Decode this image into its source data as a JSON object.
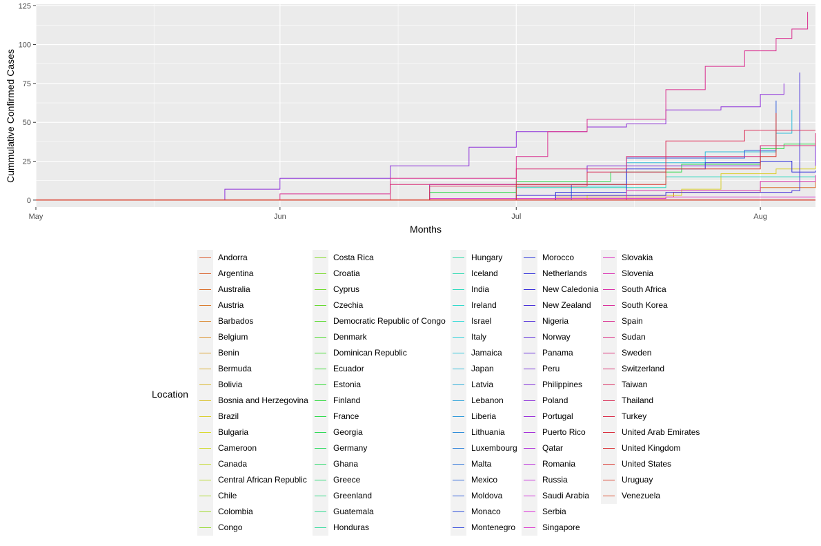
{
  "chart_data": {
    "type": "line",
    "xlabel": "Months",
    "ylabel": "Cummulative Confirmed Cases",
    "x_ticks": [
      "May",
      "Jun",
      "Jul",
      "Aug"
    ],
    "x_range": [
      "2020-05-01",
      "2020-08-08"
    ],
    "y_ticks": [
      "0",
      "25",
      "50",
      "75",
      "100",
      "125"
    ],
    "ylim": [
      -4.5,
      126
    ],
    "grid": true,
    "legend_title": "Location",
    "legend_position": "bottom",
    "series": [
      {
        "name": "Andorra",
        "points": []
      },
      {
        "name": "Argentina",
        "points": []
      },
      {
        "name": "Australia",
        "points": [
          [
            "2020-06-22",
            0
          ],
          [
            "2020-07-06",
            2
          ],
          [
            "2020-07-21",
            5
          ],
          [
            "2020-08-01",
            8
          ],
          [
            "2020-08-08",
            12
          ]
        ]
      },
      {
        "name": "Austria",
        "points": []
      },
      {
        "name": "Barbados",
        "points": []
      },
      {
        "name": "Belgium",
        "points": []
      },
      {
        "name": "Benin",
        "points": []
      },
      {
        "name": "Bermuda",
        "points": []
      },
      {
        "name": "Bolivia",
        "points": []
      },
      {
        "name": "Bosnia and Herzegovina",
        "points": []
      },
      {
        "name": "Brazil",
        "points": [
          [
            "2020-06-25",
            0
          ],
          [
            "2020-07-10",
            3
          ],
          [
            "2020-07-22",
            7
          ],
          [
            "2020-07-27",
            17
          ],
          [
            "2020-08-03",
            20
          ],
          [
            "2020-08-08",
            24
          ]
        ]
      },
      {
        "name": "Bulgaria",
        "points": []
      },
      {
        "name": "Cameroon",
        "points": []
      },
      {
        "name": "Canada",
        "points": []
      },
      {
        "name": "Central African Republic",
        "points": []
      },
      {
        "name": "Chile",
        "points": []
      },
      {
        "name": "Colombia",
        "points": []
      },
      {
        "name": "Congo",
        "points": []
      },
      {
        "name": "Costa Rica",
        "points": []
      },
      {
        "name": "Croatia",
        "points": []
      },
      {
        "name": "Cyprus",
        "points": []
      },
      {
        "name": "Czechia",
        "points": []
      },
      {
        "name": "Democratic Republic of Congo",
        "points": []
      },
      {
        "name": "Denmark",
        "points": []
      },
      {
        "name": "Dominican Republic",
        "points": []
      },
      {
        "name": "Ecuador",
        "points": []
      },
      {
        "name": "Estonia",
        "points": []
      },
      {
        "name": "Finland",
        "points": []
      },
      {
        "name": "France",
        "points": [
          [
            "2020-06-08",
            0
          ],
          [
            "2020-06-20",
            5
          ],
          [
            "2020-07-01",
            12
          ],
          [
            "2020-07-13",
            18
          ],
          [
            "2020-07-22",
            23
          ],
          [
            "2020-08-01",
            33
          ],
          [
            "2020-08-04",
            36
          ],
          [
            "2020-08-08",
            37
          ]
        ]
      },
      {
        "name": "Georgia",
        "points": []
      },
      {
        "name": "Germany",
        "points": []
      },
      {
        "name": "Ghana",
        "points": []
      },
      {
        "name": "Greece",
        "points": []
      },
      {
        "name": "Greenland",
        "points": []
      },
      {
        "name": "Guatemala",
        "points": []
      },
      {
        "name": "Honduras",
        "points": []
      },
      {
        "name": "Hungary",
        "points": []
      },
      {
        "name": "Iceland",
        "points": []
      },
      {
        "name": "India",
        "points": [
          [
            "2020-06-10",
            0
          ],
          [
            "2020-07-01",
            8
          ],
          [
            "2020-07-20",
            15
          ],
          [
            "2020-08-08",
            13
          ]
        ]
      },
      {
        "name": "Ireland",
        "points": []
      },
      {
        "name": "Israel",
        "points": []
      },
      {
        "name": "Italy",
        "points": []
      },
      {
        "name": "Jamaica",
        "points": []
      },
      {
        "name": "Japan",
        "points": [
          [
            "2020-06-15",
            0
          ],
          [
            "2020-07-01",
            9
          ],
          [
            "2020-07-15",
            24
          ],
          [
            "2020-07-25",
            31
          ],
          [
            "2020-08-03",
            43
          ],
          [
            "2020-08-05",
            58
          ]
        ]
      },
      {
        "name": "Latvia",
        "points": []
      },
      {
        "name": "Lebanon",
        "points": []
      },
      {
        "name": "Liberia",
        "points": []
      },
      {
        "name": "Lithuania",
        "points": []
      },
      {
        "name": "Luxembourg",
        "points": []
      },
      {
        "name": "Malta",
        "points": []
      },
      {
        "name": "Mexico",
        "points": []
      },
      {
        "name": "Moldova",
        "points": [
          [
            "2020-06-15",
            0
          ],
          [
            "2020-07-08",
            10
          ],
          [
            "2020-07-15",
            27
          ],
          [
            "2020-07-30",
            32
          ],
          [
            "2020-08-03",
            64
          ]
        ]
      },
      {
        "name": "Monaco",
        "points": []
      },
      {
        "name": "Montenegro",
        "points": []
      },
      {
        "name": "Morocco",
        "points": []
      },
      {
        "name": "Netherlands",
        "points": [
          [
            "2020-06-20",
            0
          ],
          [
            "2020-07-06",
            5
          ],
          [
            "2020-07-15",
            20
          ],
          [
            "2020-07-25",
            24
          ],
          [
            "2020-08-01",
            25
          ],
          [
            "2020-08-05",
            18
          ],
          [
            "2020-08-08",
            19
          ]
        ]
      },
      {
        "name": "New Caledonia",
        "points": []
      },
      {
        "name": "New Zealand",
        "points": [
          [
            "2020-06-10",
            0
          ],
          [
            "2020-07-01",
            3
          ],
          [
            "2020-07-20",
            5
          ],
          [
            "2020-08-05",
            6
          ],
          [
            "2020-08-06",
            82
          ]
        ]
      },
      {
        "name": "Nigeria",
        "points": []
      },
      {
        "name": "Norway",
        "points": []
      },
      {
        "name": "Panama",
        "points": []
      },
      {
        "name": "Peru",
        "points": []
      },
      {
        "name": "Philippines",
        "points": [
          [
            "2020-05-20",
            0
          ],
          [
            "2020-06-20",
            10
          ],
          [
            "2020-07-10",
            22
          ],
          [
            "2020-08-01",
            35
          ],
          [
            "2020-08-08",
            22
          ]
        ]
      },
      {
        "name": "Poland",
        "points": [
          [
            "2020-05-10",
            0
          ],
          [
            "2020-05-25",
            7
          ],
          [
            "2020-06-01",
            14
          ],
          [
            "2020-06-15",
            22
          ],
          [
            "2020-06-25",
            34
          ],
          [
            "2020-07-01",
            44
          ],
          [
            "2020-07-10",
            47
          ],
          [
            "2020-07-15",
            49
          ],
          [
            "2020-07-20",
            58
          ],
          [
            "2020-07-27",
            60
          ],
          [
            "2020-08-01",
            68
          ],
          [
            "2020-08-04",
            75
          ]
        ]
      },
      {
        "name": "Portugal",
        "points": []
      },
      {
        "name": "Puerto Rico",
        "points": []
      },
      {
        "name": "Qatar",
        "points": []
      },
      {
        "name": "Romania",
        "points": []
      },
      {
        "name": "Russia",
        "points": []
      },
      {
        "name": "Saudi Arabia",
        "points": []
      },
      {
        "name": "Serbia",
        "points": []
      },
      {
        "name": "Singapore",
        "points": [
          [
            "2020-05-20",
            0
          ],
          [
            "2020-06-20",
            1
          ],
          [
            "2020-07-20",
            2
          ],
          [
            "2020-08-08",
            2
          ]
        ]
      },
      {
        "name": "Slovakia",
        "points": []
      },
      {
        "name": "Slovenia",
        "points": []
      },
      {
        "name": "South Africa",
        "points": [
          [
            "2020-06-20",
            0
          ],
          [
            "2020-07-15",
            6
          ],
          [
            "2020-08-01",
            12
          ],
          [
            "2020-08-08",
            16
          ]
        ]
      },
      {
        "name": "South Korea",
        "points": []
      },
      {
        "name": "Spain",
        "points": [
          [
            "2020-05-20",
            0
          ],
          [
            "2020-06-01",
            4
          ],
          [
            "2020-06-15",
            14
          ],
          [
            "2020-07-01",
            28
          ],
          [
            "2020-07-05",
            44
          ],
          [
            "2020-07-10",
            52
          ],
          [
            "2020-07-20",
            71
          ],
          [
            "2020-07-25",
            86
          ],
          [
            "2020-07-30",
            96
          ],
          [
            "2020-08-03",
            104
          ],
          [
            "2020-08-05",
            110
          ],
          [
            "2020-08-07",
            121
          ]
        ]
      },
      {
        "name": "Sudan",
        "points": []
      },
      {
        "name": "Sweden",
        "points": [
          [
            "2020-06-01",
            0
          ],
          [
            "2020-06-15",
            10
          ],
          [
            "2020-07-01",
            20
          ],
          [
            "2020-07-15",
            28
          ],
          [
            "2020-08-01",
            35
          ],
          [
            "2020-08-08",
            43
          ]
        ]
      },
      {
        "name": "Switzerland",
        "points": []
      },
      {
        "name": "Taiwan",
        "points": []
      },
      {
        "name": "Thailand",
        "points": [
          [
            "2020-06-01",
            0
          ],
          [
            "2020-06-20",
            9
          ],
          [
            "2020-07-10",
            18
          ],
          [
            "2020-07-20",
            38
          ],
          [
            "2020-07-30",
            45
          ],
          [
            "2020-08-08",
            45
          ]
        ]
      },
      {
        "name": "Turkey",
        "points": []
      },
      {
        "name": "United Arab Emirates",
        "points": []
      },
      {
        "name": "United Kingdom",
        "points": []
      },
      {
        "name": "United States",
        "points": [
          [
            "2020-06-10",
            0
          ],
          [
            "2020-07-01",
            10
          ],
          [
            "2020-07-20",
            20
          ],
          [
            "2020-08-01",
            28
          ],
          [
            "2020-08-03",
            56
          ]
        ]
      },
      {
        "name": "Uruguay",
        "points": []
      },
      {
        "name": "Venezuela",
        "points": []
      }
    ]
  }
}
